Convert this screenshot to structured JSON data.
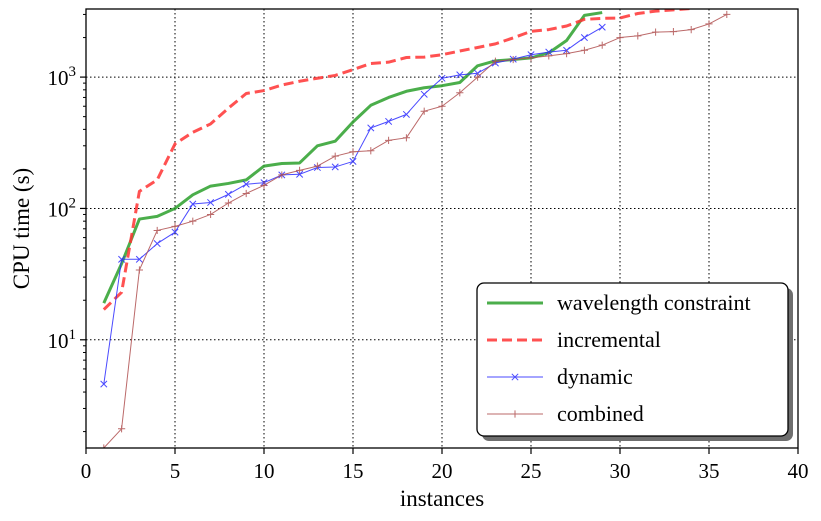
{
  "chart_data": {
    "type": "line",
    "title": "",
    "xlabel": "instances",
    "ylabel": "CPU time (s)",
    "xlim": [
      0,
      40
    ],
    "ylim": [
      1.5,
      3300
    ],
    "yscale": "log",
    "grid": true,
    "legend_position": "lower-right",
    "x_ticks": [
      0,
      5,
      10,
      15,
      20,
      25,
      30,
      35,
      40
    ],
    "x_tick_labels": [
      "0",
      "5",
      "10",
      "15",
      "20",
      "25",
      "30",
      "35",
      "40"
    ],
    "y_ticks": [
      10,
      100,
      1000
    ],
    "y_tick_labels": [
      {
        "base": "10",
        "exp": "1"
      },
      {
        "base": "10",
        "exp": "2"
      },
      {
        "base": "10",
        "exp": "3"
      }
    ],
    "series": [
      {
        "name": "wavelength constraint",
        "color": "#2ca02c",
        "style": "solid",
        "marker": "none",
        "x": [
          1,
          2,
          3,
          4,
          5,
          6,
          7,
          8,
          9,
          10,
          11,
          12,
          13,
          14,
          15,
          16,
          17,
          18,
          19,
          20,
          21,
          22,
          23,
          24,
          25,
          26,
          27,
          28,
          29
        ],
        "y": [
          19,
          38,
          83,
          87,
          100,
          127,
          148,
          155,
          165,
          210,
          220,
          222,
          300,
          325,
          455,
          610,
          700,
          780,
          830,
          860,
          910,
          1220,
          1330,
          1360,
          1400,
          1530,
          1900,
          2950,
          3100
        ]
      },
      {
        "name": "incremental",
        "color": "#ff3333",
        "style": "dashed",
        "marker": "none",
        "x": [
          1,
          2,
          3,
          4,
          5,
          6,
          7,
          8,
          9,
          10,
          11,
          12,
          13,
          14,
          15,
          16,
          17,
          18,
          19,
          20,
          21,
          22,
          23,
          24,
          25,
          26,
          27,
          28,
          29,
          30,
          31,
          32,
          33,
          34
        ],
        "y": [
          17,
          23,
          135,
          165,
          310,
          380,
          440,
          580,
          750,
          790,
          870,
          930,
          980,
          1030,
          1140,
          1270,
          1300,
          1410,
          1420,
          1480,
          1580,
          1680,
          1790,
          1990,
          2230,
          2300,
          2450,
          2750,
          2800,
          2820,
          3050,
          3180,
          3250,
          3330
        ]
      },
      {
        "name": "dynamic",
        "color": "#2b2bff",
        "style": "solid",
        "marker": "x",
        "x": [
          1,
          2,
          3,
          4,
          5,
          6,
          7,
          8,
          9,
          10,
          11,
          12,
          13,
          14,
          15,
          16,
          17,
          18,
          19,
          20,
          21,
          22,
          23,
          24,
          25,
          26,
          27,
          28,
          29
        ],
        "y": [
          4.6,
          41,
          41,
          54,
          66,
          108,
          111,
          128,
          153,
          157,
          180,
          182,
          205,
          207,
          228,
          410,
          460,
          520,
          740,
          980,
          1040,
          1070,
          1280,
          1370,
          1480,
          1550,
          1600,
          2000,
          2400
        ]
      },
      {
        "name": "combined",
        "color": "#b05050",
        "style": "solid",
        "marker": "+",
        "x": [
          1,
          2,
          3,
          4,
          5,
          6,
          7,
          8,
          9,
          10,
          11,
          12,
          13,
          14,
          15,
          16,
          17,
          18,
          19,
          20,
          21,
          22,
          23,
          24,
          25,
          26,
          27,
          28,
          29,
          30,
          31,
          32,
          33,
          34,
          35,
          36
        ],
        "y": [
          1.5,
          2.1,
          34,
          68,
          73,
          80,
          90,
          110,
          130,
          150,
          180,
          195,
          210,
          250,
          270,
          275,
          330,
          345,
          550,
          600,
          760,
          1000,
          1320,
          1360,
          1400,
          1450,
          1510,
          1600,
          1750,
          2000,
          2060,
          2200,
          2220,
          2300,
          2540,
          3000
        ]
      }
    ]
  }
}
